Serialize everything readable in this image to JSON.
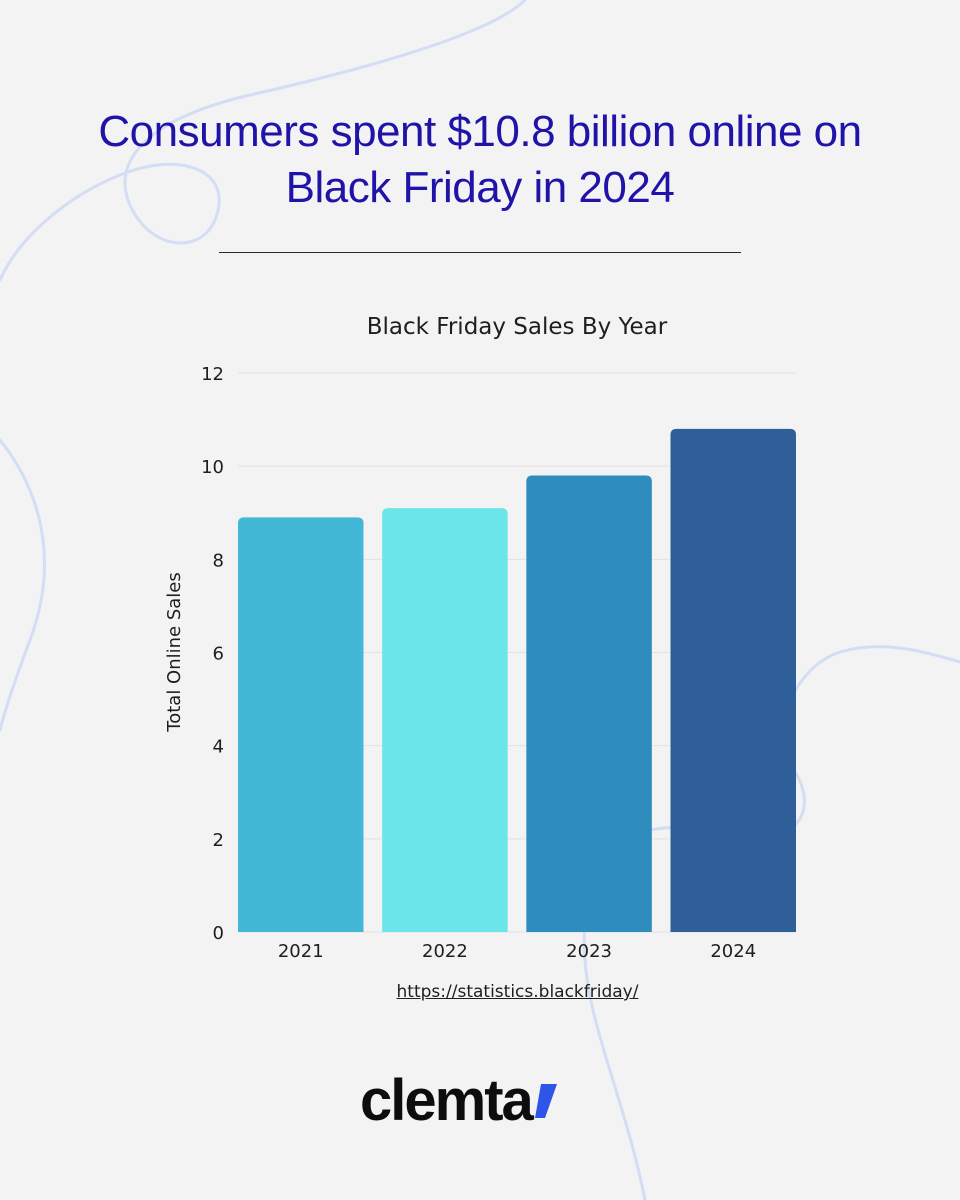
{
  "headline": "Consumers spent $10.8 billion online on Black Friday in 2024",
  "source_link": "https://statistics.blackfriday/",
  "brand": {
    "name": "clemta",
    "accent_color": "#2f55e8",
    "text_color": "#0d0d0d"
  },
  "colors": {
    "background": "#f3f3f3",
    "headline": "#1f13a8",
    "decor_lines": "#d3ddf3"
  },
  "chart_data": {
    "type": "bar",
    "title": "Black Friday Sales By Year",
    "xlabel": "",
    "ylabel": "Total Online Sales",
    "categories": [
      "2021",
      "2022",
      "2023",
      "2024"
    ],
    "values": [
      8.9,
      9.1,
      9.8,
      10.8
    ],
    "bar_colors": [
      "#43b8d6",
      "#6ce5e8",
      "#2e8dbd",
      "#2e5f99"
    ],
    "ylim": [
      0,
      12
    ],
    "yticks": [
      0,
      2,
      4,
      6,
      8,
      10,
      12
    ],
    "grid": true,
    "legend": "none"
  }
}
